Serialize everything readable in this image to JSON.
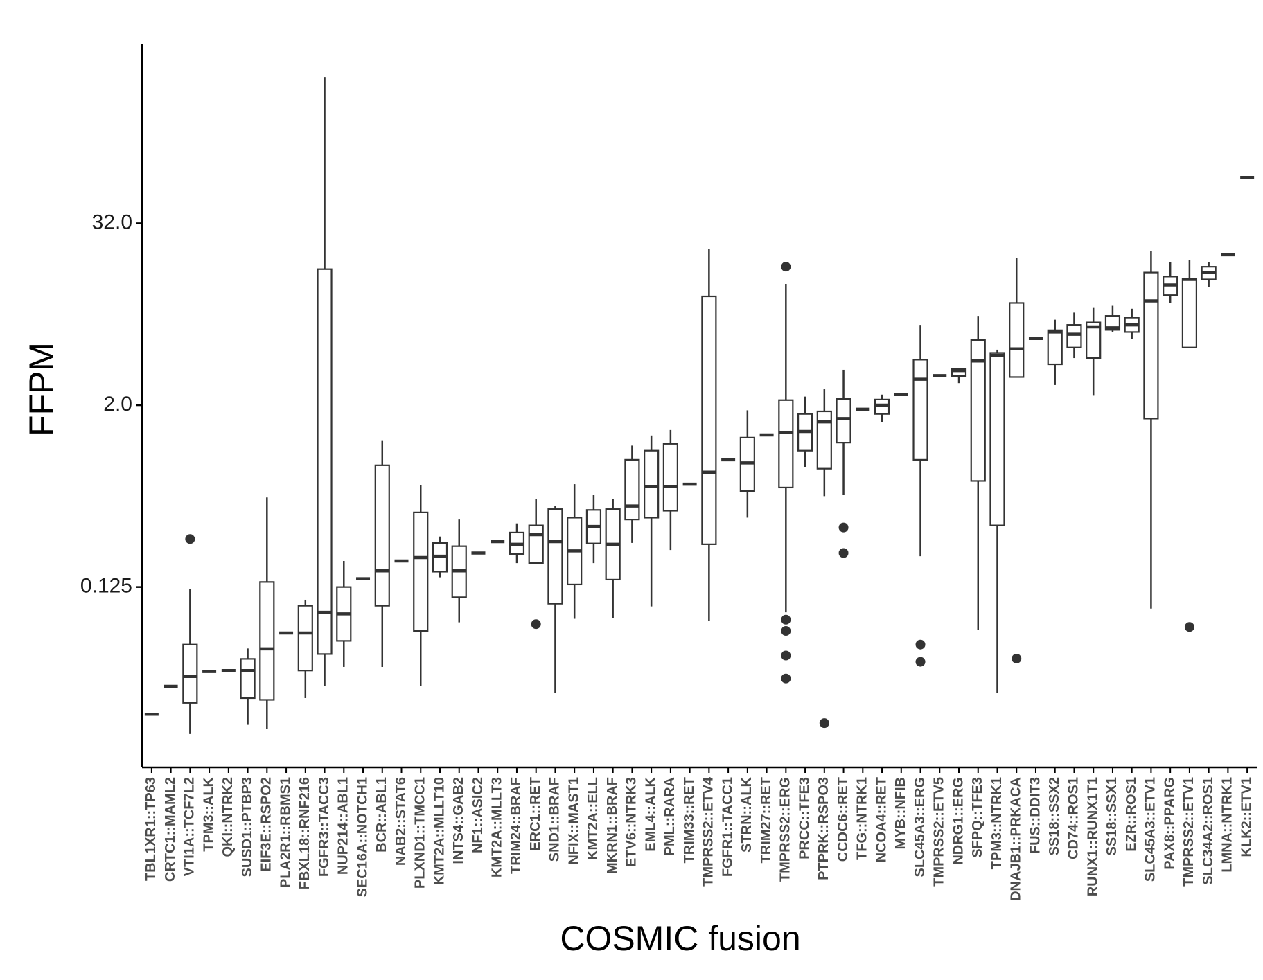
{
  "chart_data": {
    "type": "box",
    "y_label": "FFPM",
    "x_label": "COSMIC fusion",
    "ylog": true,
    "ylim": [
      0.008,
      490
    ],
    "yticks": [
      0.125,
      {
        "value": 2,
        "label": "2.0"
      },
      {
        "value": 32,
        "label": "32.0"
      }
    ],
    "color": "#333333",
    "categories": [
      "TBL1XR1::TP63",
      "CRTC1::MAML2",
      "VTI1A::TCF7L2",
      "TPM3::ALK",
      "QKI::NTRK2",
      "SUSD1::PTBP3",
      "EIF3E::RSPO2",
      "PLA2R1::RBMS1",
      "FBXL18::RNF216",
      "FGFR3::TACC3",
      "NUP214::ABL1",
      "SEC16A::NOTCH1",
      "BCR::ABL1",
      "NAB2::STAT6",
      "PLXND1::TMCC1",
      "KMT2A::MLLT10",
      "INTS4::GAB2",
      "NF1::ASIC2",
      "KMT2A::MLLT3",
      "TRIM24::BRAF",
      "ERC1::RET",
      "SND1::BRAF",
      "NFIX::MAST1",
      "KMT2A::ELL",
      "MKRN1::BRAF",
      "ETV6::NTRK3",
      "EML4::ALK",
      "PML::RARA",
      "TRIM33::RET",
      "TMPRSS2::ETV4",
      "FGFR1::TACC1",
      "STRN::ALK",
      "TRIM27::RET",
      "TMPRSS2::ERG",
      "PRCC::TFE3",
      "PTPRK::RSPO3",
      "CCDC6::RET",
      "TFG::NTRK1",
      "NCOA4::RET",
      "MYB::NFIB",
      "SLC45A3::ERG",
      "TMPRSS2::ETV5",
      "NDRG1::ERG",
      "SFPQ::TFE3",
      "TPM3::NTRK1",
      "DNAJB1::PRKACA",
      "FUS::DDIT3",
      "SS18::SSX2",
      "CD74::ROS1",
      "RUNX1::RUNX1T1",
      "SS18::SSX1",
      "EZR::ROS1",
      "SLC45A3::ETV1",
      "PAX8::PPARG",
      "TMPRSS2::ETV1",
      "SLC34A2::ROS1",
      "LMNA::NTRK1",
      "KLK2::ETV1"
    ],
    "whisker_low": [
      0.018,
      0.0275,
      0.0133,
      0.0345,
      0.035,
      0.0153,
      0.0143,
      0.062,
      0.023,
      0.0276,
      0.037,
      0.142,
      0.037,
      0.186,
      0.0276,
      0.145,
      0.073,
      0.21,
      0.25,
      0.18,
      0.18,
      0.025,
      0.077,
      0.18,
      0.078,
      0.245,
      0.093,
      0.22,
      0.6,
      0.075,
      0.87,
      0.36,
      1.27,
      0.085,
      0.78,
      0.5,
      0.51,
      1.88,
      1.55,
      2.35,
      0.2,
      3.14,
      2.8,
      0.065,
      0.025,
      3.07,
      5.53,
      2.72,
      4.1,
      2.31,
      6.1,
      5.5,
      0.09,
      9.5,
      4.82,
      12.1,
      19.8,
      64.4
    ],
    "q1": [
      0.018,
      0.0275,
      0.0214,
      0.0345,
      0.035,
      0.023,
      0.0224,
      0.062,
      0.035,
      0.045,
      0.055,
      0.142,
      0.094,
      0.186,
      0.064,
      0.158,
      0.107,
      0.21,
      0.25,
      0.207,
      0.18,
      0.097,
      0.13,
      0.243,
      0.14,
      0.35,
      0.36,
      0.4,
      0.6,
      0.24,
      0.87,
      0.54,
      1.27,
      0.57,
      1.0,
      0.76,
      1.13,
      1.88,
      1.75,
      2.35,
      0.87,
      3.14,
      3.12,
      0.63,
      0.32,
      3.07,
      5.53,
      3.73,
      4.82,
      4.1,
      6.3,
      6.1,
      1.63,
      10.7,
      4.82,
      13.6,
      19.8,
      64.4
    ],
    "median": [
      0.018,
      0.0275,
      0.032,
      0.0345,
      0.035,
      0.035,
      0.0487,
      0.062,
      0.062,
      0.085,
      0.083,
      0.142,
      0.16,
      0.186,
      0.196,
      0.2,
      0.16,
      0.21,
      0.25,
      0.24,
      0.278,
      0.25,
      0.217,
      0.315,
      0.24,
      0.43,
      0.58,
      0.58,
      0.6,
      0.72,
      0.87,
      0.83,
      1.27,
      1.32,
      1.34,
      1.55,
      1.63,
      1.88,
      2.0,
      2.35,
      2.97,
      3.14,
      3.39,
      3.92,
      4.28,
      4.72,
      5.53,
      6.1,
      5.9,
      6.6,
      6.5,
      6.8,
      9.8,
      12.5,
      13.6,
      15.1,
      19.8,
      64.4
    ],
    "q3": [
      0.018,
      0.0275,
      0.052,
      0.0345,
      0.035,
      0.0418,
      0.135,
      0.062,
      0.094,
      15.9,
      0.125,
      0.142,
      0.8,
      0.186,
      0.39,
      0.245,
      0.233,
      0.21,
      0.25,
      0.287,
      0.32,
      0.41,
      0.36,
      0.405,
      0.41,
      0.87,
      1.0,
      1.11,
      0.6,
      10.5,
      0.87,
      1.22,
      1.27,
      2.16,
      1.75,
      1.82,
      2.2,
      1.88,
      2.18,
      2.35,
      4.0,
      3.14,
      3.48,
      5.4,
      4.44,
      9.5,
      5.53,
      6.27,
      6.8,
      7.06,
      7.8,
      7.6,
      15.1,
      14.2,
      13.7,
      16.5,
      19.8,
      64.4
    ],
    "whisker_high": [
      0.018,
      0.0275,
      0.121,
      0.0345,
      0.035,
      0.049,
      0.49,
      0.062,
      0.103,
      298,
      0.186,
      0.142,
      1.16,
      0.186,
      0.59,
      0.27,
      0.35,
      0.21,
      0.25,
      0.33,
      0.48,
      0.43,
      0.6,
      0.51,
      0.48,
      1.08,
      1.26,
      1.37,
      0.6,
      21.6,
      0.87,
      1.85,
      1.27,
      12.7,
      2.28,
      2.55,
      3.43,
      1.88,
      2.35,
      2.35,
      6.8,
      3.14,
      3.5,
      7.8,
      4.66,
      18.9,
      5.53,
      7.36,
      8.2,
      8.9,
      9.1,
      8.7,
      20.9,
      17.8,
      18.2,
      17.8,
      19.8,
      64.4
    ],
    "outliers": [
      [],
      [],
      [
        0.26
      ],
      [],
      [],
      [],
      [],
      [],
      [],
      [],
      [],
      [],
      [],
      [],
      [],
      [],
      [],
      [],
      [],
      [],
      [
        0.071
      ],
      [],
      [],
      [],
      [],
      [],
      [],
      [],
      [],
      [],
      [],
      [],
      [],
      [
        16.5,
        0.076,
        0.064,
        0.044,
        0.031
      ],
      [],
      [
        0.0157
      ],
      [
        0.31,
        0.21
      ],
      [],
      [],
      [],
      [
        0.052,
        0.04
      ],
      [],
      [],
      [],
      [],
      [
        0.042
      ],
      [],
      [],
      [],
      [],
      [],
      [],
      [],
      [],
      [
        0.068
      ],
      [],
      [],
      []
    ]
  }
}
